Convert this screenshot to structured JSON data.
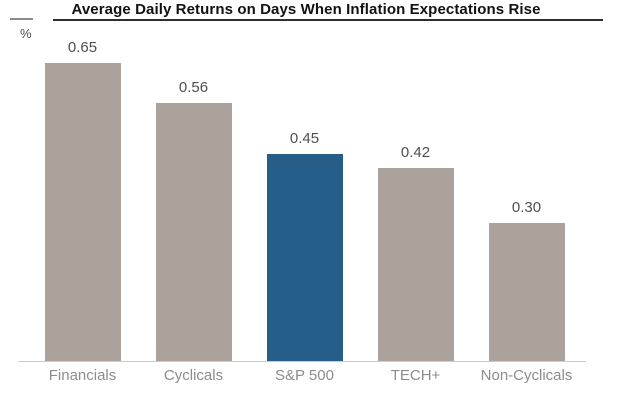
{
  "header": {
    "title": "Average Daily Returns on Days When Inflation Expectations Rise",
    "y_axis_unit": "%"
  },
  "chart_data": {
    "type": "bar",
    "title": "Average Daily Returns on Days When Inflation Expectations Rise",
    "xlabel": "",
    "ylabel": "%",
    "categories": [
      "Financials",
      "Cyclicals",
      "S&P 500",
      "TECH+",
      "Non-Cyclicals"
    ],
    "values": [
      0.65,
      0.56,
      0.45,
      0.42,
      0.3
    ],
    "value_labels": [
      "0.65",
      "0.56",
      "0.45",
      "0.42",
      "0.30"
    ],
    "ylim": [
      0,
      0.7
    ],
    "grid": false,
    "legend": "none",
    "highlight_category": "S&P 500",
    "bar_colors": [
      "#aba39b",
      "#aba39b",
      "#275e89",
      "#aba39b",
      "#aba39b"
    ],
    "colors": {
      "default_bar": "#aba39b",
      "highlight_bar": "#275e89",
      "axis_line": "#cbcbcb",
      "value_label": "#4f4f4f",
      "category_label": "#8c8c8c",
      "title_text": "#121212"
    }
  }
}
